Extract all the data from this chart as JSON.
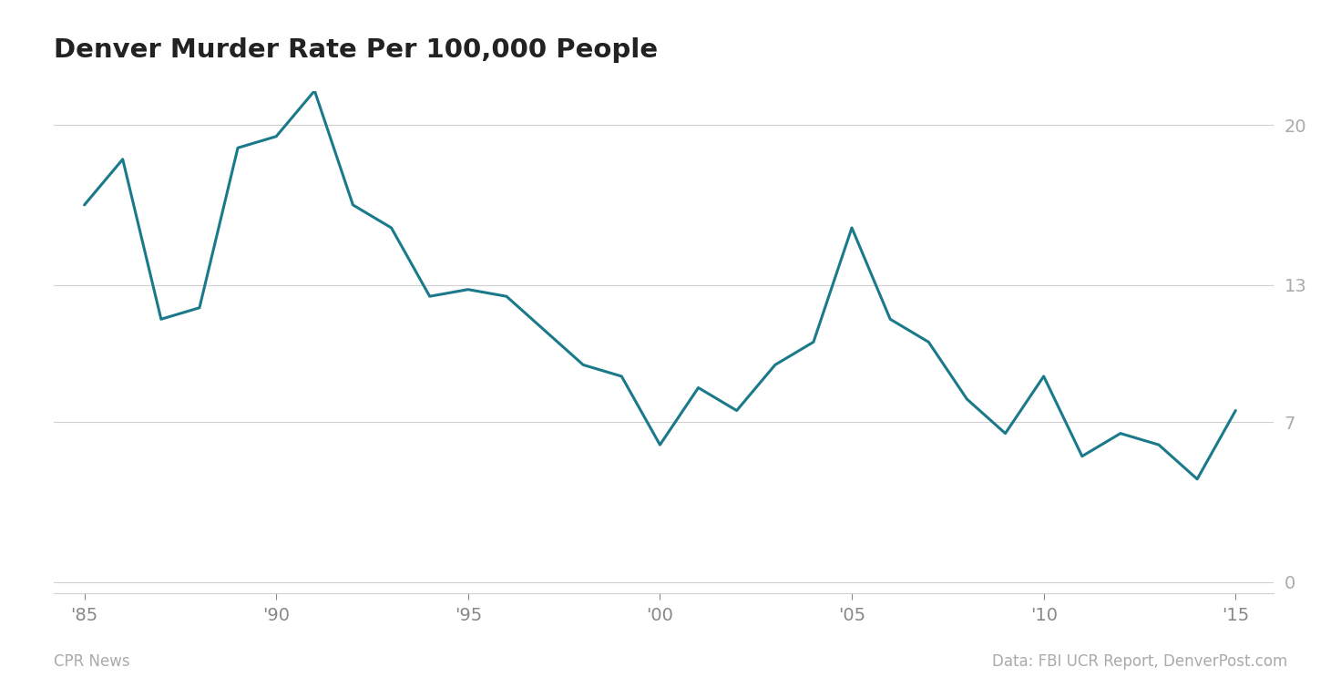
{
  "title": "Denver Murder Rate Per 100,000 People",
  "years": [
    1985,
    1986,
    1987,
    1988,
    1989,
    1990,
    1991,
    1992,
    1993,
    1994,
    1995,
    1996,
    1997,
    1998,
    1999,
    2000,
    2001,
    2002,
    2003,
    2004,
    2005,
    2006,
    2007,
    2008,
    2009,
    2010,
    2011,
    2012,
    2013,
    2014,
    2015
  ],
  "values": [
    16.5,
    18.5,
    11.5,
    12.0,
    19.0,
    19.5,
    21.5,
    16.5,
    15.5,
    12.5,
    12.8,
    12.5,
    11.0,
    9.5,
    9.0,
    6.0,
    8.5,
    7.5,
    9.5,
    10.5,
    15.5,
    11.5,
    10.5,
    8.0,
    6.5,
    9.0,
    5.5,
    6.5,
    6.0,
    4.5,
    7.5
  ],
  "line_color": "#1a7a8a",
  "line_width": 2.2,
  "yticks": [
    0,
    7,
    13,
    20
  ],
  "ylim": [
    -0.5,
    21.5
  ],
  "xlim": [
    1984.2,
    2016.0
  ],
  "xtick_years": [
    1985,
    1990,
    1995,
    2000,
    2005,
    2010,
    2015
  ],
  "xtick_labels": [
    "'85",
    "'90",
    "'95",
    "'00",
    "'05",
    "'10",
    "'15"
  ],
  "background_color": "#ffffff",
  "grid_color": "#d0d0d0",
  "title_fontsize": 21,
  "tick_fontsize": 14,
  "ytick_color": "#aaaaaa",
  "xtick_color": "#888888",
  "footer_left": "CPR News",
  "footer_right": "Data: FBI UCR Report, DenverPost.com",
  "footer_fontsize": 12
}
